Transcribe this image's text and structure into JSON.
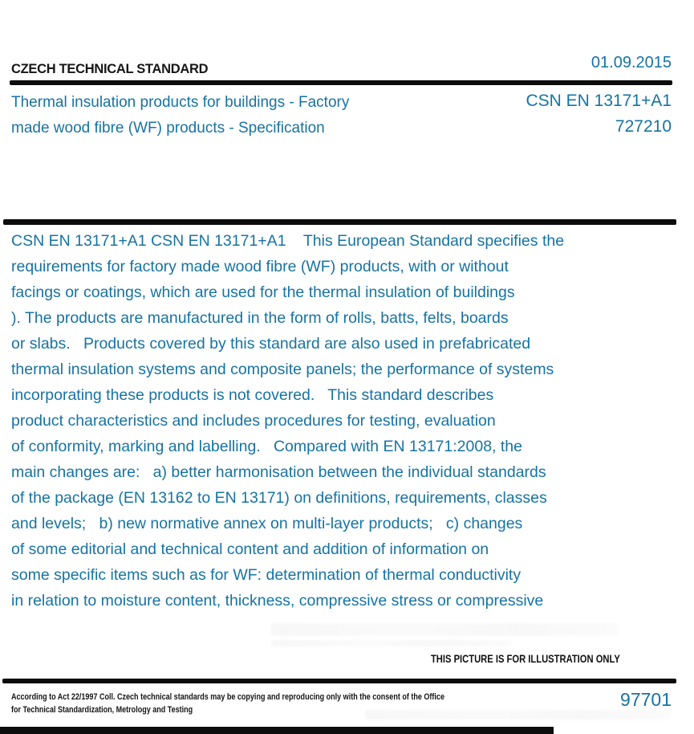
{
  "page": {
    "header": {
      "standard_label": "CZECH TECHNICAL STANDARD",
      "date": "01.09.2015"
    },
    "title_block": {
      "title_lines": [
        "Thermal insulation products for buildings - Factory",
        "made wood fibre (WF) products - Specification"
      ],
      "designation": "CSN EN 13171+A1",
      "class_number": "727210"
    },
    "abstract": {
      "lines": [
        "CSN EN 13171+A1 CSN EN 13171+A1    This European Standard specifies the",
        "requirements for factory made wood fibre (WF) products, with or without",
        "facings or coatings, which are used for the thermal insulation of buildings",
        "). The products are manufactured in the form of rolls, batts, felts, boards",
        "or slabs.   Products covered by this standard are also used in prefabricated",
        "thermal insulation systems and composite panels; the performance of systems",
        "incorporating these products is not covered.   This standard describes",
        "product characteristics and includes procedures for testing, evaluation",
        "of conformity, marking and labelling.   Compared with EN 13171:2008, the",
        "main changes are:   a) better harmonisation between the individual standards",
        "of the package (EN 13162 to EN 13171) on definitions, requirements, classes",
        "and levels;   b) new normative annex on multi-layer products;   c) changes",
        "of some editorial and technical content and addition of information on",
        "some specific items such as for WF: determination of thermal conductivity",
        "in relation to moisture content, thickness, compressive stress or compressive"
      ]
    },
    "illustration_notice": "THIS PICTURE IS FOR ILLUSTRATION ONLY",
    "footer": {
      "copyright_lines": [
        "According to Act 22/1997 Coll. Czech technical standards may be copying and reproducing only with the consent of the Office",
        "for Technical Standardization, Metrology and Testing"
      ],
      "catalog_number": "97701"
    },
    "colors": {
      "accent_teal": "#1673a3",
      "text_black": "#111111"
    }
  }
}
